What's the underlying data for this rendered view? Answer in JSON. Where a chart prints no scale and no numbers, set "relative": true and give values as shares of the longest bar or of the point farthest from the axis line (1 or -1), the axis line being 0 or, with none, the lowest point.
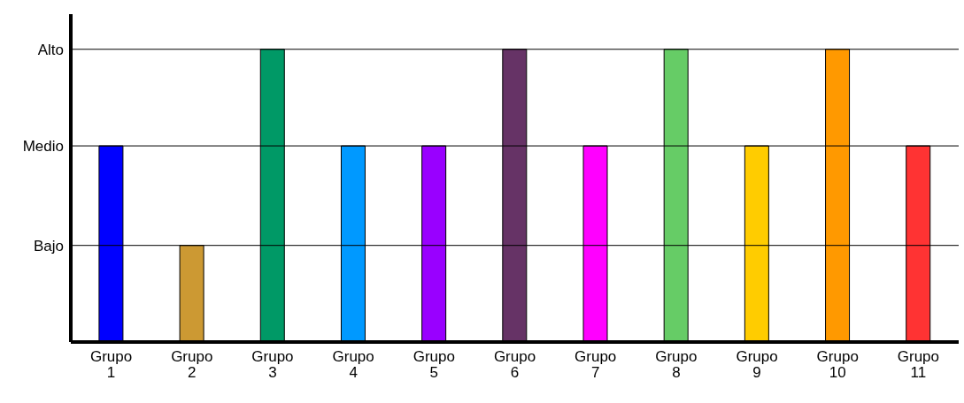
{
  "chart_data": {
    "type": "bar",
    "relative": true,
    "categories": [
      "Grupo 1",
      "Grupo 2",
      "Grupo 3",
      "Grupo 4",
      "Grupo 5",
      "Grupo 6",
      "Grupo 7",
      "Grupo 8",
      "Grupo 9",
      "Grupo 10",
      "Grupo 11"
    ],
    "values": [
      0.67,
      0.33,
      1,
      0.67,
      0.67,
      1,
      0.67,
      1,
      0.67,
      1,
      0.67
    ],
    "colors": [
      "#0000ff",
      "#cc9933",
      "#009966",
      "#0099ff",
      "#9900ff",
      "#663366",
      "#ff00ff",
      "#66cc66",
      "#ffcc00",
      "#ff9900",
      "#ff3333"
    ],
    "ref_lines": [
      {
        "axis": "y",
        "value": 0.33,
        "label": "Bajo"
      },
      {
        "axis": "y",
        "value": 0.67,
        "label": "Medio"
      },
      {
        "axis": "y",
        "value": 1,
        "label": "Alto"
      }
    ]
  }
}
